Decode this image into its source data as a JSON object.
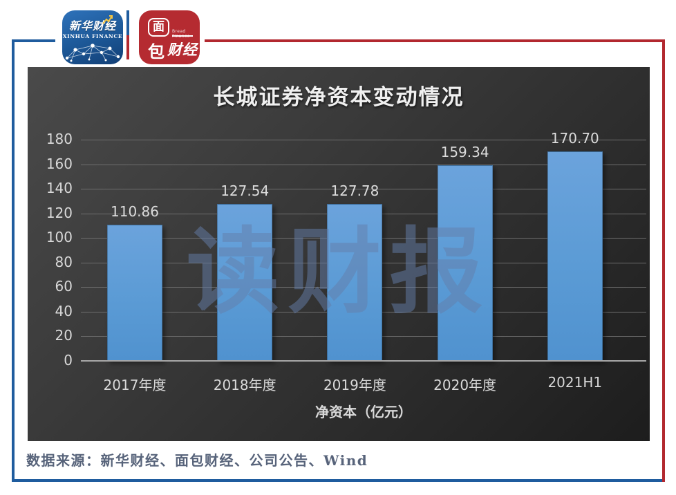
{
  "header": {
    "xinhua_logo": {
      "name_cn": "新华财经",
      "name_en": "XINHUA FINANCE"
    },
    "bread_logo": {
      "char_top": "面",
      "char_bottom": "包",
      "text_right": "财经",
      "name_en": "Bread Finance"
    }
  },
  "chart_data": {
    "type": "bar",
    "title": "长城证券净资本变动情况",
    "categories": [
      "2017年度",
      "2018年度",
      "2019年度",
      "2020年度",
      "2021H1"
    ],
    "values": [
      110.86,
      127.54,
      127.78,
      159.34,
      170.7
    ],
    "xlabel": "净资本（亿元）",
    "ylim": [
      0,
      180
    ],
    "ytick_step": 20,
    "grid": true,
    "legend_position": "none",
    "bar_color": "#5B9BD5",
    "watermark": "读财报",
    "value_decimals": 2
  },
  "footer": {
    "source": "数据来源：新华财经、面包财经、公司公告、Wind"
  },
  "frame_colors": {
    "blue": "#1f5c9e",
    "red": "#b2282f"
  }
}
